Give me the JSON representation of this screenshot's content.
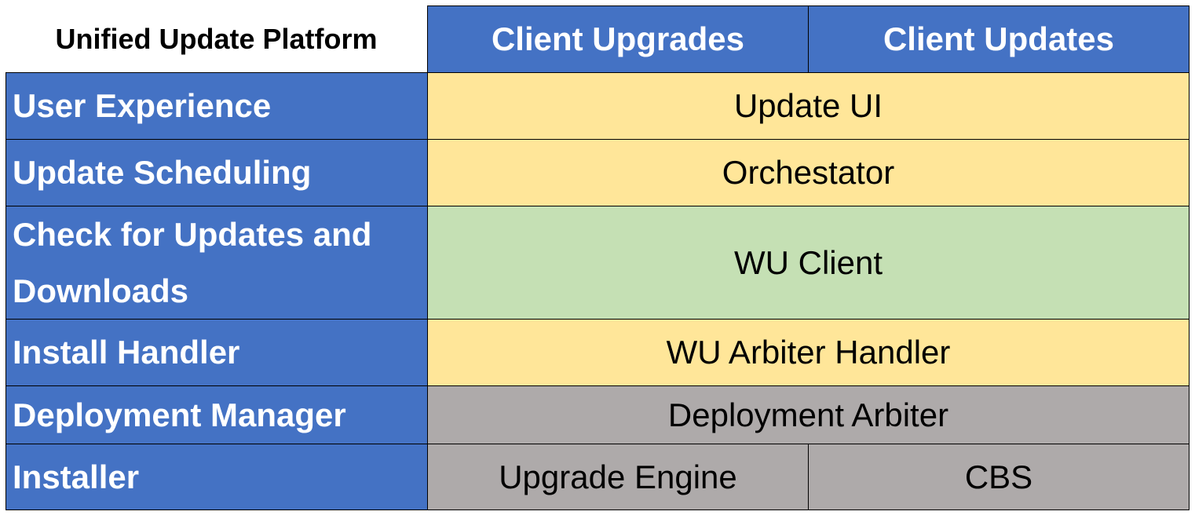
{
  "title": "Unified Update Platform",
  "columns": [
    "Client Upgrades",
    "Client Updates"
  ],
  "rows": [
    {
      "label": "User Experience",
      "cells": [
        "Update UI"
      ],
      "color": "#FFE699"
    },
    {
      "label": "Update Scheduling",
      "cells": [
        "Orchestator"
      ],
      "color": "#FFE699"
    },
    {
      "label": "Check for Updates and Downloads",
      "cells": [
        "WU Client"
      ],
      "color": "#C5E0B4"
    },
    {
      "label": "Install Handler",
      "cells": [
        "WU Arbiter Handler"
      ],
      "color": "#FFE699"
    },
    {
      "label": "Deployment Manager",
      "cells": [
        "Deployment Arbiter"
      ],
      "color": "#AEAAAA"
    },
    {
      "label": "Installer",
      "cells": [
        "Upgrade Engine",
        "CBS"
      ],
      "color": "#AEAAAA"
    }
  ],
  "colors": {
    "header": "#4472C4",
    "yellow": "#FFE699",
    "green": "#C5E0B4",
    "gray": "#AEAAAA"
  }
}
